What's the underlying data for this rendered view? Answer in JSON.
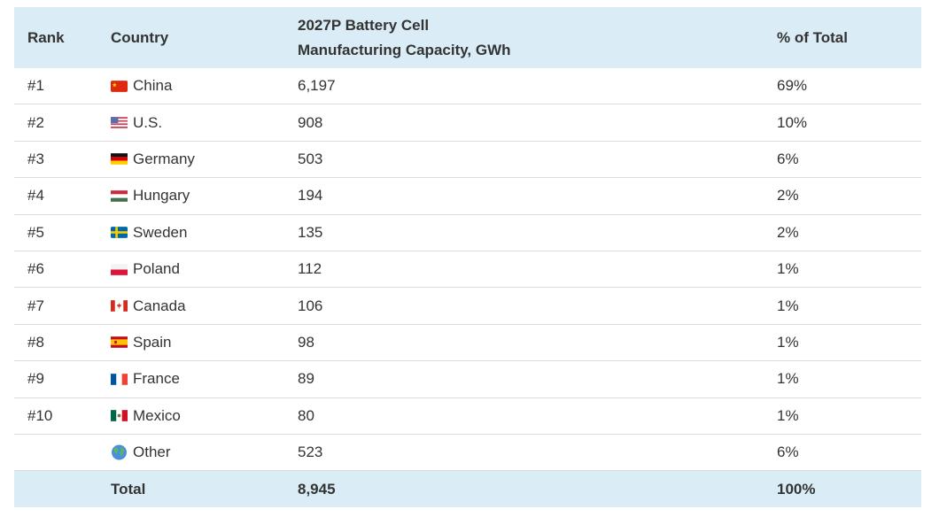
{
  "table": {
    "headers": [
      "Rank",
      "Country",
      "2027P Battery Cell",
      "Manufacturing Capacity, GWh",
      "% of Total"
    ],
    "rows": [
      [
        "#1",
        "China",
        "6,197",
        "69%"
      ],
      [
        "#2",
        "U.S.",
        "908",
        "10%"
      ],
      [
        "#3",
        "Germany",
        "503",
        "6%"
      ],
      [
        "#4",
        "Hungary",
        "194",
        "2%"
      ],
      [
        "#5",
        "Sweden",
        "135",
        "2%"
      ],
      [
        "#6",
        "Poland",
        "112",
        "1%"
      ],
      [
        "#7",
        "Canada",
        "106",
        "1%"
      ],
      [
        "#8",
        "Spain",
        "98",
        "1%"
      ],
      [
        "#9",
        "France",
        "89",
        "1%"
      ],
      [
        "#10",
        "Mexico",
        "80",
        "1%"
      ],
      [
        "Other",
        "523",
        "6%"
      ]
    ],
    "total": [
      "Total",
      "8,945",
      "100%"
    ]
  }
}
